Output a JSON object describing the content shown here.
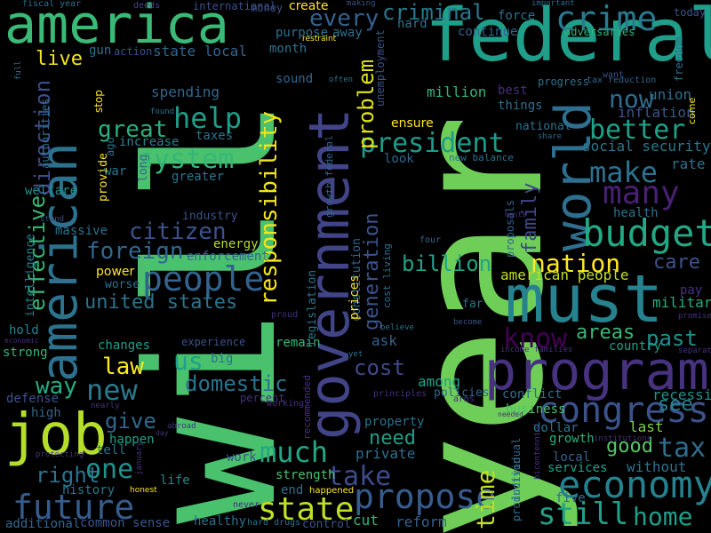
{
  "words": [
    {
      "text": "year",
      "color": "#6ece58"
    },
    {
      "text": "will",
      "color": "#4ac16d"
    },
    {
      "text": "federal",
      "color": "#1f9e89"
    },
    {
      "text": "america",
      "color": "#3aba76"
    },
    {
      "text": "american",
      "color": "#2c728e"
    },
    {
      "text": "government",
      "color": "#414487"
    },
    {
      "text": "must",
      "color": "#26828e"
    },
    {
      "text": "program",
      "color": "#46327e"
    },
    {
      "text": "job",
      "color": "#b5de2b"
    },
    {
      "text": "world",
      "color": "#2e6e8e"
    },
    {
      "text": "budget",
      "color": "#22a884"
    },
    {
      "text": "crime",
      "color": "#2a788e"
    },
    {
      "text": "economy",
      "color": "#26828e"
    },
    {
      "text": "congress",
      "color": "#3b528b"
    },
    {
      "text": "many",
      "color": "#482173"
    },
    {
      "text": "people",
      "color": "#33638d"
    },
    {
      "text": "propose",
      "color": "#365c8d"
    },
    {
      "text": "state",
      "color": "#bddf26"
    },
    {
      "text": "future",
      "color": "#365c8d"
    },
    {
      "text": "still",
      "color": "#1fa088"
    },
    {
      "text": "help",
      "color": "#1f9e89"
    },
    {
      "text": "system",
      "color": "#35b779"
    },
    {
      "text": "make",
      "color": "#2c728e"
    },
    {
      "text": "better",
      "color": "#1fa188"
    },
    {
      "text": "responsibility",
      "color": "#f1e51d"
    },
    {
      "text": "president",
      "color": "#1e9b8a"
    },
    {
      "text": "new",
      "color": "#2a788e"
    },
    {
      "text": "much",
      "color": "#22a884"
    },
    {
      "text": "know",
      "color": "#440154"
    },
    {
      "text": "home",
      "color": "#1f9e89"
    },
    {
      "text": "tax",
      "color": "#2f6c8e"
    },
    {
      "text": "take",
      "color": "#3e4a89"
    },
    {
      "text": "one",
      "color": "#21918c"
    },
    {
      "text": "time",
      "color": "#c2df23"
    },
    {
      "text": "nation",
      "color": "#fde725"
    },
    {
      "text": "great",
      "color": "#29af7f"
    },
    {
      "text": "every",
      "color": "#34618d"
    },
    {
      "text": "criminal",
      "color": "#2a788e"
    },
    {
      "text": "citizen",
      "color": "#3b528b"
    },
    {
      "text": "foreign",
      "color": "#31668e"
    },
    {
      "text": "billion",
      "color": "#20a386"
    },
    {
      "text": "effective",
      "color": "#37b878"
    },
    {
      "text": "direction",
      "color": "#3e4a89"
    },
    {
      "text": "problem",
      "color": "#e2e418"
    },
    {
      "text": "generation",
      "color": "#3a548c"
    },
    {
      "text": "now",
      "color": "#2f6c8e"
    },
    {
      "text": "us",
      "color": "#1fa188"
    },
    {
      "text": "domestic",
      "color": "#2c728e"
    },
    {
      "text": "give",
      "color": "#31688e"
    },
    {
      "text": "cost",
      "color": "#3e4989"
    },
    {
      "text": "law",
      "color": "#fde725"
    },
    {
      "text": "way",
      "color": "#25ab82"
    },
    {
      "text": "need",
      "color": "#1f9e89"
    },
    {
      "text": "areas",
      "color": "#37b878"
    },
    {
      "text": "past",
      "color": "#21908d"
    },
    {
      "text": "care",
      "color": "#3b528b"
    },
    {
      "text": "family",
      "color": "#3f4788"
    },
    {
      "text": "united states",
      "color": "#2c728e"
    },
    {
      "text": "right",
      "color": "#2c728e"
    },
    {
      "text": "good",
      "color": "#56c667"
    },
    {
      "text": "live",
      "color": "#f1e51d"
    },
    {
      "text": "american people",
      "color": "#c2df23"
    },
    {
      "text": "million",
      "color": "#31b57b"
    },
    {
      "text": "best",
      "color": "#472d7b"
    },
    {
      "text": "things",
      "color": "#2e6f8e"
    },
    {
      "text": "union",
      "color": "#2e6e8e"
    },
    {
      "text": "inflation",
      "color": "#39568c"
    },
    {
      "text": "social security",
      "color": "#2a788e"
    },
    {
      "text": "rate",
      "color": "#2c728e"
    },
    {
      "text": "military",
      "color": "#26ad81"
    },
    {
      "text": "country",
      "color": "#1fa088"
    },
    {
      "text": "recession",
      "color": "#21908d"
    },
    {
      "text": "see",
      "color": "#26828e"
    },
    {
      "text": "last",
      "color": "#7fd34e"
    },
    {
      "text": "without",
      "color": "#2c728e"
    },
    {
      "text": "services",
      "color": "#20a386"
    },
    {
      "text": "five",
      "color": "#2e6e8e"
    },
    {
      "text": "reform",
      "color": "#33638d"
    },
    {
      "text": "growth",
      "color": "#2ab07f"
    },
    {
      "text": "local",
      "color": "#31668e"
    },
    {
      "text": "dollar",
      "color": "#2a788e"
    },
    {
      "text": "business",
      "color": "#4ac16d"
    },
    {
      "text": "conflict",
      "color": "#2e6e8e"
    },
    {
      "text": "policies",
      "color": "#31668e"
    },
    {
      "text": "among",
      "color": "#1fa088"
    },
    {
      "text": "private",
      "color": "#2e6e8e"
    },
    {
      "text": "property",
      "color": "#2c728e"
    },
    {
      "text": "ask",
      "color": "#33638d"
    },
    {
      "text": "cut",
      "color": "#31b57b"
    },
    {
      "text": "remain",
      "color": "#35b779"
    },
    {
      "text": "end",
      "color": "#2c728e"
    },
    {
      "text": "strength",
      "color": "#4ac16d"
    },
    {
      "text": "work",
      "color": "#3a548c"
    },
    {
      "text": "life",
      "color": "#24878e"
    },
    {
      "text": "healthy",
      "color": "#2e6e8e"
    },
    {
      "text": "control",
      "color": "#3a548c"
    },
    {
      "text": "hard drugs",
      "color": "#2c728e"
    },
    {
      "text": "never",
      "color": "#472d7b"
    },
    {
      "text": "common sense",
      "color": "#39568c"
    },
    {
      "text": "additional",
      "color": "#31668e"
    },
    {
      "text": "history",
      "color": "#2a788e"
    },
    {
      "text": "tell",
      "color": "#2c728e"
    },
    {
      "text": "happen",
      "color": "#1fa188"
    },
    {
      "text": "high",
      "color": "#31668e"
    },
    {
      "text": "defense",
      "color": "#3a548c"
    },
    {
      "text": "strong",
      "color": "#35b779"
    },
    {
      "text": "hold",
      "color": "#26828e"
    },
    {
      "text": "economic",
      "color": "#46327e"
    },
    {
      "text": "intelligence",
      "color": "#26828e"
    },
    {
      "text": "massive",
      "color": "#2c728e"
    },
    {
      "text": "welfare",
      "color": "#21908d"
    },
    {
      "text": "stand",
      "color": "#3b528b"
    },
    {
      "text": "power",
      "color": "#fde725"
    },
    {
      "text": "worse",
      "color": "#2c728e"
    },
    {
      "text": "changes",
      "color": "#1f9e89"
    },
    {
      "text": "experience",
      "color": "#3b528b"
    },
    {
      "text": "big",
      "color": "#2c728e"
    },
    {
      "text": "enforcement",
      "color": "#31668e"
    },
    {
      "text": "energy",
      "color": "#b5de2b"
    },
    {
      "text": "industry",
      "color": "#3b528b"
    },
    {
      "text": "greater",
      "color": "#2c728e"
    },
    {
      "text": "provide",
      "color": "#fde725"
    },
    {
      "text": "war",
      "color": "#2a788e"
    },
    {
      "text": "long",
      "color": "#31668e"
    },
    {
      "text": "increase",
      "color": "#26828e"
    },
    {
      "text": "taxes",
      "color": "#2c728e"
    },
    {
      "text": "spending",
      "color": "#31668e"
    },
    {
      "text": "ago",
      "color": "#2c728e"
    },
    {
      "text": "stop",
      "color": "#fde725"
    },
    {
      "text": "gun",
      "color": "#2c728e"
    },
    {
      "text": "action",
      "color": "#3b528b"
    },
    {
      "text": "state local",
      "color": "#31668e"
    },
    {
      "text": "purpose",
      "color": "#2c728e"
    },
    {
      "text": "away",
      "color": "#2c728e"
    },
    {
      "text": "month",
      "color": "#2c728e"
    },
    {
      "text": "sound",
      "color": "#31668e"
    },
    {
      "text": "create",
      "color": "#fde725"
    },
    {
      "text": "money",
      "color": "#3a548c"
    },
    {
      "text": "international",
      "color": "#3b528b"
    },
    {
      "text": "deeds",
      "color": "#414487"
    },
    {
      "text": "fiscal year",
      "color": "#2c728e"
    },
    {
      "text": "making",
      "color": "#3b528b"
    },
    {
      "text": "important",
      "color": "#2e6e8e"
    },
    {
      "text": "force",
      "color": "#2c728e"
    },
    {
      "text": "hard",
      "color": "#2c728e"
    },
    {
      "text": "continue",
      "color": "#31668e"
    },
    {
      "text": "adversaries",
      "color": "#31b57b"
    },
    {
      "text": "freedom",
      "color": "#2c728e"
    },
    {
      "text": "today",
      "color": "#3b528b"
    },
    {
      "text": "want",
      "color": "#3b528b"
    },
    {
      "text": "progress",
      "color": "#2c728e"
    },
    {
      "text": "tax reduction",
      "color": "#31668e"
    },
    {
      "text": "come",
      "color": "#fde725"
    },
    {
      "text": "restraint",
      "color": "#fde725"
    },
    {
      "text": "often",
      "color": "#2c728e"
    },
    {
      "text": "unemployment",
      "color": "#3b528b"
    },
    {
      "text": "ensure",
      "color": "#fde725"
    },
    {
      "text": "national",
      "color": "#2c728e"
    },
    {
      "text": "share",
      "color": "#31668e"
    },
    {
      "text": "look",
      "color": "#31668e"
    },
    {
      "text": "new balance",
      "color": "#2c728e"
    },
    {
      "text": "found",
      "color": "#2c728e"
    },
    {
      "text": "growth federal",
      "color": "#31668e"
    },
    {
      "text": "legislation",
      "color": "#2c728e"
    },
    {
      "text": "constitution",
      "color": "#31668e"
    },
    {
      "text": "prices",
      "color": "#fde725"
    },
    {
      "text": "cost living",
      "color": "#2c728e"
    },
    {
      "text": "proposals",
      "color": "#31668e"
    },
    {
      "text": "health",
      "color": "#2c728e"
    },
    {
      "text": "far",
      "color": "#2c728e"
    },
    {
      "text": "four",
      "color": "#31668e"
    },
    {
      "text": "become",
      "color": "#3b528b"
    },
    {
      "text": "pay",
      "color": "#46327e"
    },
    {
      "text": "promise",
      "color": "#46327e"
    },
    {
      "text": "separate",
      "color": "#46327e"
    },
    {
      "text": "income families",
      "color": "#46327e"
    },
    {
      "text": "believe",
      "color": "#2c728e"
    },
    {
      "text": "yet",
      "color": "#2c728e"
    },
    {
      "text": "proud",
      "color": "#46327e"
    },
    {
      "text": "recommended",
      "color": "#46327e"
    },
    {
      "text": "principles",
      "color": "#46327e"
    },
    {
      "text": "arms",
      "color": "#46327e"
    },
    {
      "text": "percent",
      "color": "#46327e"
    },
    {
      "text": "working",
      "color": "#46327e"
    },
    {
      "text": "nearly",
      "color": "#46327e"
    },
    {
      "text": "abroad",
      "color": "#46327e"
    },
    {
      "text": "day",
      "color": "#46327e"
    },
    {
      "text": "january",
      "color": "#46327e"
    },
    {
      "text": "protecting",
      "color": "#46327e"
    },
    {
      "text": "honest",
      "color": "#fde725"
    },
    {
      "text": "happened",
      "color": "#fde725"
    },
    {
      "text": "individual",
      "color": "#31668e"
    },
    {
      "text": "production",
      "color": "#2c728e"
    },
    {
      "text": "bicentennial",
      "color": "#46327e"
    },
    {
      "text": "institutions",
      "color": "#46327e"
    },
    {
      "text": "needed",
      "color": "#46327e"
    },
    {
      "text": "authorities",
      "color": "#2c728e"
    },
    {
      "text": "full",
      "color": "#2c728e"
    },
    {
      "text": "ments",
      "color": "#46327e"
    }
  ]
}
